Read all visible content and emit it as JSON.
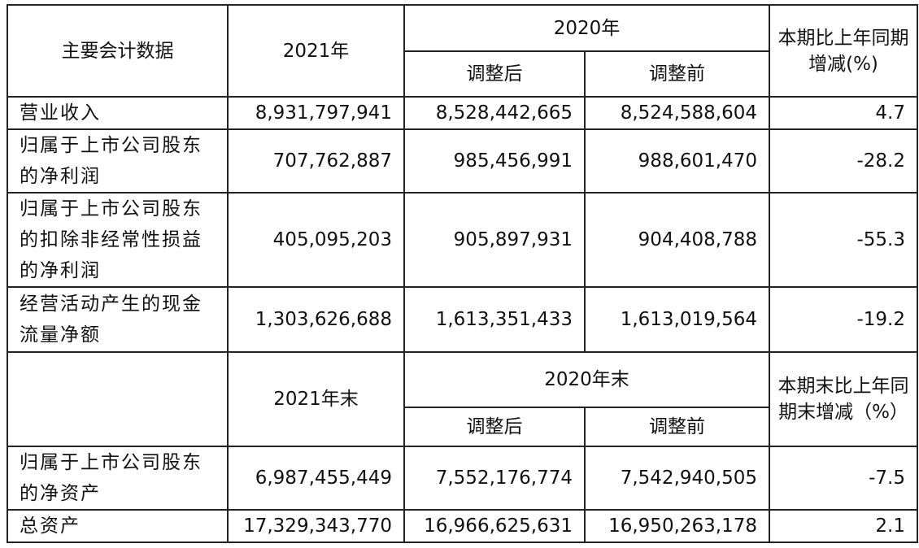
{
  "header": {
    "item_label": "主要会计数据",
    "year_2021": "2021年",
    "year_2020": "2020年",
    "adjusted_after": "调整后",
    "adjusted_before": "调整前",
    "change_label": "本期比上年同期增减(%)"
  },
  "rows": [
    {
      "label": "营业收入",
      "y2021": "8,931,797,941",
      "y2020_after": "8,528,442,665",
      "y2020_before": "8,524,588,604",
      "change": "4.7"
    },
    {
      "label": "归属于上市公司股东的净利润",
      "y2021": "707,762,887",
      "y2020_after": "985,456,991",
      "y2020_before": "988,601,470",
      "change": "-28.2"
    },
    {
      "label": "归属于上市公司股东的扣除非经常性损益的净利润",
      "y2021": "405,095,203",
      "y2020_after": "905,897,931",
      "y2020_before": "904,408,788",
      "change": "-55.3"
    },
    {
      "label": "经营活动产生的现金流量净额",
      "y2021": "1,303,626,688",
      "y2020_after": "1,613,351,433",
      "y2020_before": "1,613,019,564",
      "change": "-19.2"
    }
  ],
  "header2": {
    "year_2021_end": "2021年末",
    "year_2020_end": "2020年末",
    "adjusted_after": "调整后",
    "adjusted_before": "调整前",
    "change_label": "本期末比上年同期末增减（%）"
  },
  "rows2": [
    {
      "label": "归属于上市公司股东的净资产",
      "y2021": "6,987,455,449",
      "y2020_after": "7,552,176,774",
      "y2020_before": "7,542,940,505",
      "change": "-7.5"
    },
    {
      "label": "总资产",
      "y2021": "17,329,343,770",
      "y2020_after": "16,966,625,631",
      "y2020_before": "16,950,263,178",
      "change": "2.1"
    }
  ]
}
